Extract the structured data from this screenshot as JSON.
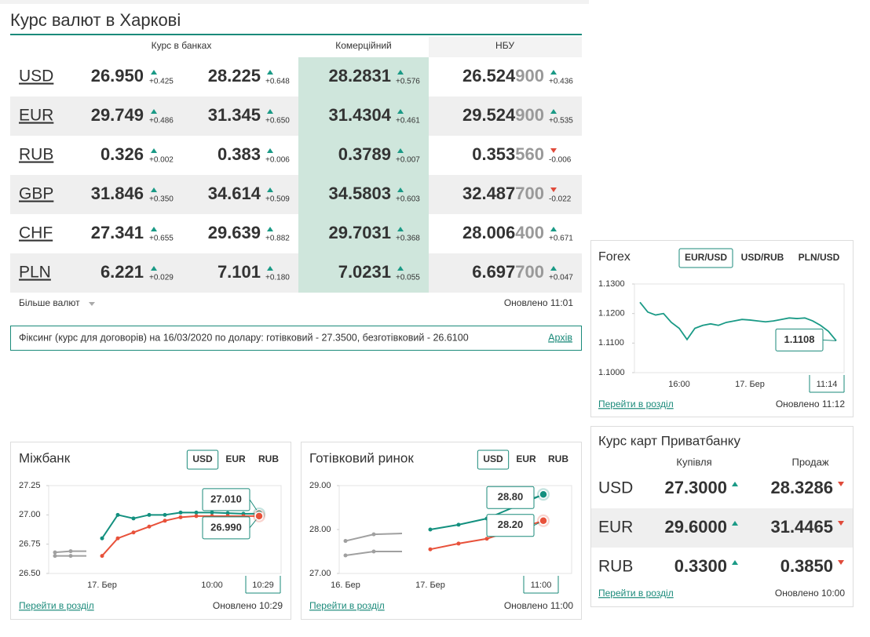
{
  "header": {
    "title": "Курс валют в Харкові"
  },
  "rates": {
    "headers": [
      "Курс в банках",
      "Комерційний",
      "НБУ"
    ],
    "rows": [
      {
        "code": "USD",
        "buy": "26.950",
        "buy_change": "+0.425",
        "sell": "28.225",
        "sell_change": "+0.648",
        "commercial": "28.2831",
        "commercial_change": "+0.576",
        "nbu": "26.524",
        "nbu_extra_digits": "900",
        "nbu_change": "+0.436"
      },
      {
        "code": "EUR",
        "buy": "29.749",
        "buy_change": "+0.486",
        "sell": "31.345",
        "sell_change": "+0.650",
        "commercial": "31.4304",
        "commercial_change": "+0.461",
        "nbu": "29.524",
        "nbu_extra_digits": "900",
        "nbu_change": "+0.535"
      },
      {
        "code": "RUB",
        "buy": "0.326",
        "buy_change": "+0.002",
        "sell": "0.383",
        "sell_change": "+0.006",
        "commercial": "0.3789",
        "commercial_change": "+0.007",
        "nbu": "0.353",
        "nbu_extra_digits": "560",
        "nbu_change": "-0.006"
      },
      {
        "code": "GBP",
        "buy": "31.846",
        "buy_change": "+0.350",
        "sell": "34.614",
        "sell_change": "+0.509",
        "commercial": "34.5803",
        "commercial_change": "+0.603",
        "nbu": "32.487",
        "nbu_extra_digits": "700",
        "nbu_change": "-0.022"
      },
      {
        "code": "CHF",
        "buy": "27.341",
        "buy_change": "+0.655",
        "sell": "29.639",
        "sell_change": "+0.882",
        "commercial": "29.7031",
        "commercial_change": "+0.368",
        "nbu": "28.006",
        "nbu_extra_digits": "400",
        "nbu_change": "+0.671"
      },
      {
        "code": "PLN",
        "buy": "6.221",
        "buy_change": "+0.029",
        "sell": "7.101",
        "sell_change": "+0.180",
        "commercial": "7.0231",
        "commercial_change": "+0.055",
        "nbu": "6.697",
        "nbu_extra_digits": "700",
        "nbu_change": "+0.047"
      }
    ],
    "more": "Більше валют",
    "updated": "Оновлено 11:01"
  },
  "fixing": {
    "text": "Фіксинг (курс для договорів) на 16/03/2020 по долару: готівковий - 27.3500, безготівковий - 26.6100",
    "archive": "Архів"
  },
  "forex": {
    "title": "Forex",
    "tabs": [
      "EUR/USD",
      "USD/RUB",
      "PLN/USD"
    ],
    "active_tab": 0,
    "chart": {
      "type": "line",
      "categories": [
        null,
        null,
        null,
        null,
        null,
        "16:00",
        null,
        null,
        null,
        null,
        null,
        null,
        null,
        null,
        "17. Бер",
        null,
        null,
        null,
        null,
        null,
        null,
        null,
        null,
        null,
        null,
        null
      ],
      "ylim": [
        1.1,
        1.13
      ],
      "yticks": [
        {
          "value": 1.13,
          "label": "1.1300"
        },
        {
          "value": 1.12,
          "label": "1.1200"
        },
        {
          "value": 1.11,
          "label": "1.1100"
        },
        {
          "value": 1.1,
          "label": "1.1000"
        }
      ],
      "series": [
        {
          "color": "#1a9a86",
          "values": [
            1.1238,
            1.1205,
            1.1195,
            1.12,
            1.117,
            1.115,
            1.1112,
            1.115,
            1.116,
            1.1165,
            1.116,
            1.117,
            1.1175,
            1.118,
            1.1178,
            1.1175,
            1.1172,
            1.1175,
            1.118,
            1.1185,
            1.1183,
            1.1185,
            1.1175,
            1.116,
            1.114,
            1.1108
          ]
        }
      ],
      "current_time": "11:14"
    },
    "link": "Перейти в розділ",
    "updated": "Оновлено 11:12"
  },
  "interbank": {
    "title": "Міжбанк",
    "tabs": [
      "USD",
      "EUR",
      "RUB"
    ],
    "active_tab": 0,
    "chart": {
      "type": "line",
      "categories": [
        null,
        null,
        null,
        "17. Бер",
        null,
        null,
        null,
        null,
        null,
        null,
        "10:00",
        null,
        null,
        null
      ],
      "ylim": [
        26.5,
        27.25
      ],
      "yticks": [
        27.25,
        {
          "value": 27,
          "label": "27.00"
        },
        26.75,
        {
          "value": 26.5,
          "label": "26.50"
        }
      ],
      "series": [
        {
          "color": "#a0a0a0",
          "values": [
            26.68,
            26.69,
            26.69,
            null,
            null,
            null,
            null,
            null,
            null,
            null,
            null,
            null,
            null,
            null
          ]
        },
        {
          "color": "#a0a0a0",
          "values": [
            26.65,
            26.65,
            26.65,
            null,
            null,
            null,
            null,
            null,
            null,
            null,
            null,
            null,
            null,
            null
          ]
        },
        {
          "color": "#13907f",
          "values": [
            null,
            null,
            null,
            26.8,
            27,
            26.97,
            27,
            27,
            27.02,
            27.02,
            27.02,
            27.015,
            27.01,
            27.01
          ],
          "value_labels": [
            null,
            null,
            null,
            null,
            null,
            null,
            null,
            null,
            null,
            null,
            null,
            null,
            null,
            "27.010"
          ]
        },
        {
          "color": "#e8513a",
          "values": [
            null,
            null,
            null,
            26.65,
            26.8,
            26.85,
            26.9,
            26.95,
            26.98,
            26.99,
            26.99,
            26.99,
            26.99,
            26.99
          ],
          "value_labels": [
            null,
            null,
            null,
            null,
            null,
            null,
            null,
            null,
            null,
            null,
            null,
            null,
            null,
            "26.990"
          ]
        }
      ],
      "current_time": "10:29"
    },
    "link": "Перейти в розділ",
    "updated": "Оновлено 10:29"
  },
  "cash_market": {
    "title": "Готівковий ринок",
    "tabs": [
      "USD",
      "EUR",
      "RUB"
    ],
    "active_tab": 0,
    "chart": {
      "type": "line",
      "categories": [
        "16. Бер",
        null,
        null,
        "17. Бер",
        null,
        null,
        null,
        null
      ],
      "ylim": [
        27,
        29
      ],
      "yticks": [
        {
          "value": 29,
          "label": "29.00"
        },
        {
          "value": 28,
          "label": "28.00"
        },
        {
          "value": 27,
          "label": "27.00"
        }
      ],
      "series": [
        {
          "color": "#a0a0a0",
          "values": [
            27.74,
            27.89,
            27.91,
            null,
            null,
            null,
            null,
            null
          ]
        },
        {
          "color": "#a0a0a0",
          "values": [
            27.41,
            27.5,
            27.5,
            null,
            null,
            null,
            null,
            null
          ]
        },
        {
          "color": "#13907f",
          "values": [
            null,
            null,
            null,
            28,
            28.11,
            28.25,
            28.52,
            28.8
          ],
          "value_labels": [
            null,
            null,
            null,
            null,
            null,
            null,
            null,
            "28.80"
          ]
        },
        {
          "color": "#e8513a",
          "values": [
            null,
            null,
            null,
            27.55,
            27.68,
            27.79,
            28,
            28.2
          ],
          "value_labels": [
            null,
            null,
            null,
            null,
            null,
            null,
            null,
            "28.20"
          ]
        }
      ],
      "current_time": "11:00"
    },
    "link": "Перейти в розділ",
    "updated": "Оновлено 11:00"
  },
  "privatbank_cards": {
    "title": "Курс карт Приватбанку",
    "headers": [
      "Купівля",
      "Продаж"
    ],
    "rows": [
      {
        "code": "USD",
        "buy": "27.3000",
        "buy_trend": "up",
        "sell": "28.3286",
        "sell_trend": "down"
      },
      {
        "code": "EUR",
        "buy": "29.6000",
        "buy_trend": "up",
        "sell": "31.4465",
        "sell_trend": "down"
      },
      {
        "code": "RUB",
        "buy": "0.3300",
        "buy_trend": "up",
        "sell": "0.3850",
        "sell_trend": "down"
      }
    ],
    "link": "Перейти в розділ",
    "updated": "Оновлено 10:00"
  }
}
